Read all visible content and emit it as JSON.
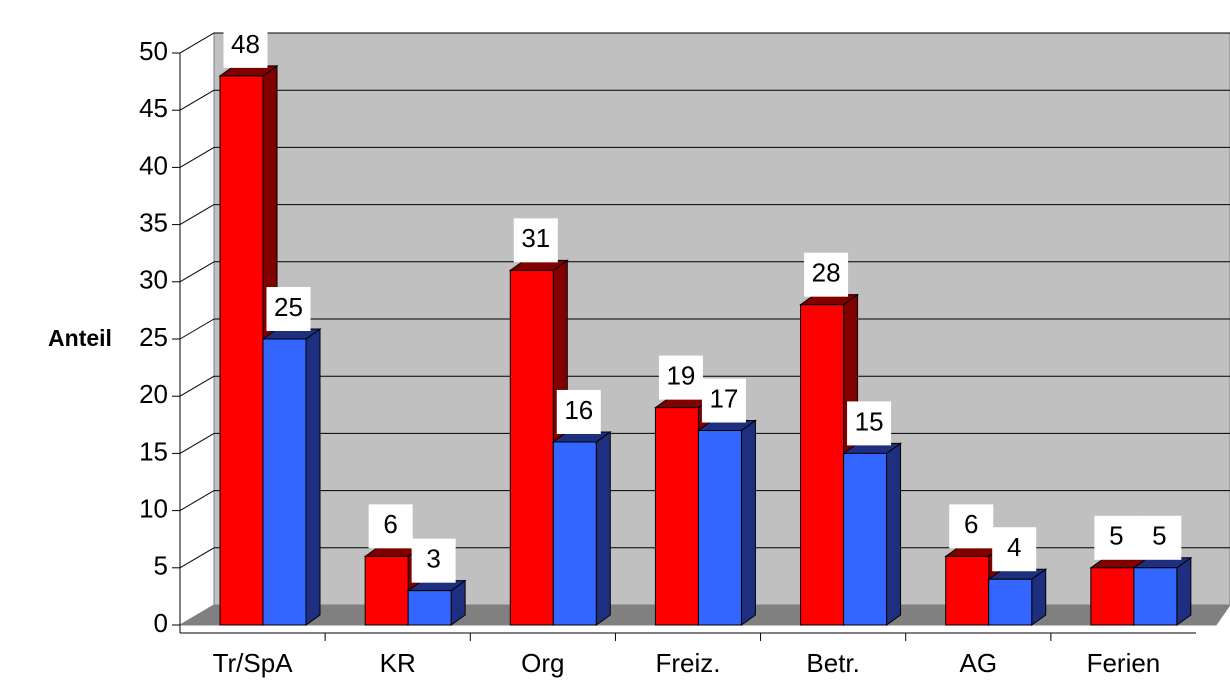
{
  "chart_data": {
    "type": "bar3d",
    "ylabel": "Anteil",
    "categories": [
      "Tr/SpA",
      "KR",
      "Org",
      "Freiz.",
      "Betr.",
      "AG",
      "Ferien"
    ],
    "series": [
      {
        "color": "#ff0000",
        "side_color": "#800000",
        "values": [
          48,
          6,
          31,
          19,
          28,
          6,
          5
        ]
      },
      {
        "color": "#3366ff",
        "side_color": "#1f2f80",
        "values": [
          25,
          3,
          16,
          17,
          15,
          4,
          5
        ]
      }
    ],
    "ylim": [
      0,
      50
    ],
    "yticks": [
      0,
      5,
      10,
      15,
      20,
      25,
      30,
      35,
      40,
      45,
      50
    ],
    "grid": true,
    "data_labels": true
  }
}
